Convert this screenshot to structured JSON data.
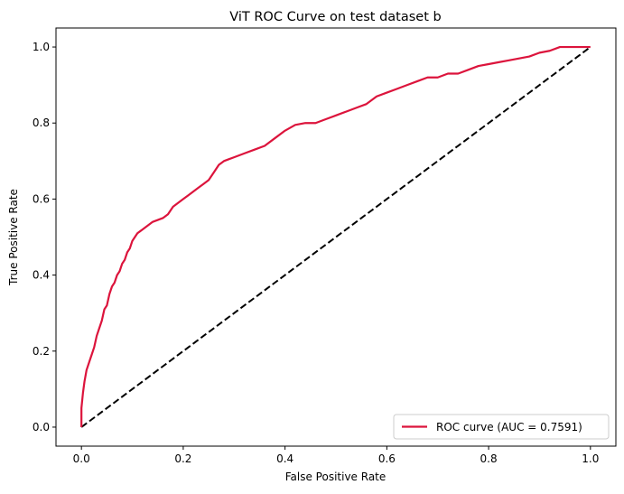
{
  "chart_data": {
    "type": "line",
    "title": "ViT ROC Curve on test dataset b",
    "xlabel": "False Positive Rate",
    "ylabel": "True Positive Rate",
    "xlim": [
      -0.05,
      1.05
    ],
    "ylim": [
      -0.05,
      1.05
    ],
    "xticks": [
      0.0,
      0.2,
      0.4,
      0.6,
      0.8,
      1.0
    ],
    "xtick_labels": [
      "0.0",
      "0.2",
      "0.4",
      "0.6",
      "0.8",
      "1.0"
    ],
    "yticks": [
      0.0,
      0.2,
      0.4,
      0.6,
      0.8,
      1.0
    ],
    "ytick_labels": [
      "0.0",
      "0.2",
      "0.4",
      "0.6",
      "0.8",
      "1.0"
    ],
    "grid": false,
    "legend": {
      "placement": "lower-right"
    },
    "series": [
      {
        "name": "ROC curve (AUC = 0.7591)",
        "color": "#dc143c",
        "style": "solid",
        "x": [
          0.0,
          0.0,
          0.003,
          0.006,
          0.01,
          0.015,
          0.02,
          0.025,
          0.03,
          0.035,
          0.04,
          0.045,
          0.05,
          0.055,
          0.06,
          0.065,
          0.07,
          0.075,
          0.08,
          0.085,
          0.09,
          0.095,
          0.1,
          0.105,
          0.11,
          0.115,
          0.12,
          0.13,
          0.14,
          0.15,
          0.16,
          0.17,
          0.18,
          0.19,
          0.2,
          0.21,
          0.22,
          0.23,
          0.24,
          0.25,
          0.26,
          0.27,
          0.28,
          0.29,
          0.3,
          0.32,
          0.34,
          0.36,
          0.38,
          0.4,
          0.42,
          0.44,
          0.46,
          0.48,
          0.5,
          0.52,
          0.54,
          0.56,
          0.58,
          0.6,
          0.62,
          0.64,
          0.66,
          0.68,
          0.7,
          0.72,
          0.74,
          0.76,
          0.78,
          0.8,
          0.82,
          0.84,
          0.86,
          0.88,
          0.9,
          0.92,
          0.94,
          0.96,
          0.98,
          1.0
        ],
        "y": [
          0.0,
          0.05,
          0.09,
          0.12,
          0.15,
          0.17,
          0.19,
          0.21,
          0.24,
          0.26,
          0.28,
          0.31,
          0.32,
          0.35,
          0.37,
          0.38,
          0.4,
          0.41,
          0.43,
          0.44,
          0.46,
          0.47,
          0.49,
          0.5,
          0.51,
          0.515,
          0.52,
          0.53,
          0.54,
          0.545,
          0.55,
          0.56,
          0.58,
          0.59,
          0.6,
          0.61,
          0.62,
          0.63,
          0.64,
          0.65,
          0.67,
          0.69,
          0.7,
          0.705,
          0.71,
          0.72,
          0.73,
          0.74,
          0.76,
          0.78,
          0.795,
          0.8,
          0.8,
          0.81,
          0.82,
          0.83,
          0.84,
          0.85,
          0.87,
          0.88,
          0.89,
          0.9,
          0.91,
          0.92,
          0.92,
          0.93,
          0.93,
          0.94,
          0.95,
          0.955,
          0.96,
          0.965,
          0.97,
          0.975,
          0.985,
          0.99,
          1.0,
          1.0,
          1.0,
          1.0
        ]
      },
      {
        "name": "",
        "color": "#000000",
        "style": "dashed",
        "x": [
          0.0,
          1.0
        ],
        "y": [
          0.0,
          1.0
        ]
      }
    ]
  }
}
